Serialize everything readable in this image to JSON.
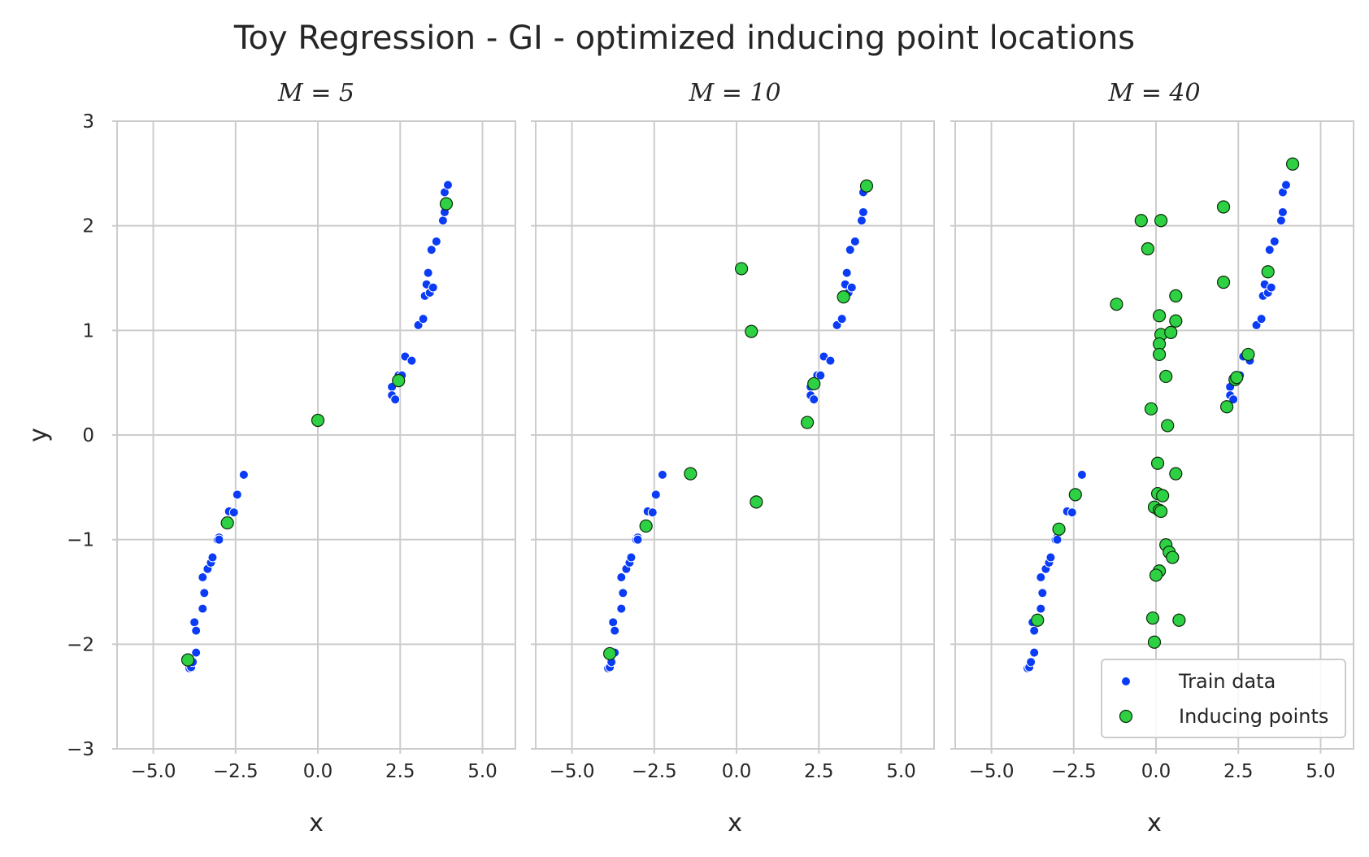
{
  "figure": {
    "suptitle": "Toy Regression - GI - optimized inducing point locations"
  },
  "colors": {
    "train": "#0b3cf5",
    "inducing": "#2ed143",
    "inducing_edge": "#0a2a0a",
    "grid": "#cccccc",
    "spine": "#cccccc"
  },
  "legend": {
    "position": "lower-right",
    "items": [
      {
        "label": "Train data",
        "kind": "train"
      },
      {
        "label": "Inducing points",
        "kind": "inducing"
      }
    ]
  },
  "chart_data": [
    {
      "type": "scatter",
      "title": "M = 5",
      "xlabel": "x",
      "ylabel": "y",
      "xlim": [
        -6.1,
        6.0
      ],
      "ylim": [
        -3,
        3
      ],
      "xticks": [
        -5.0,
        -2.5,
        0.0,
        2.5,
        5.0
      ],
      "xtick_labels": [
        "−5.0",
        "−2.5",
        "0.0",
        "2.5",
        "5.0"
      ],
      "yticks": [
        3,
        2,
        1,
        0,
        -1,
        -2,
        -3
      ],
      "ytick_labels": [
        "3",
        "2",
        "1",
        "0",
        "−1",
        "−2",
        "−3"
      ],
      "grid": true,
      "series": [
        {
          "name": "Train data",
          "points": [
            [
              -3.9,
              -2.23
            ],
            [
              -3.85,
              -2.22
            ],
            [
              -3.8,
              -2.17
            ],
            [
              -3.7,
              -2.08
            ],
            [
              -3.75,
              -1.79
            ],
            [
              -3.7,
              -1.87
            ],
            [
              -3.5,
              -1.66
            ],
            [
              -3.45,
              -1.51
            ],
            [
              -3.5,
              -1.36
            ],
            [
              -3.35,
              -1.28
            ],
            [
              -3.25,
              -1.22
            ],
            [
              -3.2,
              -1.17
            ],
            [
              -3.05,
              -1.0
            ],
            [
              -3.0,
              -0.98
            ],
            [
              -3.0,
              -1.0
            ],
            [
              -2.7,
              -0.73
            ],
            [
              -2.55,
              -0.74
            ],
            [
              -2.45,
              -0.57
            ],
            [
              -2.25,
              -0.38
            ],
            [
              2.25,
              0.46
            ],
            [
              2.25,
              0.38
            ],
            [
              2.35,
              0.34
            ],
            [
              2.45,
              0.57
            ],
            [
              2.55,
              0.57
            ],
            [
              2.65,
              0.75
            ],
            [
              2.85,
              0.71
            ],
            [
              3.05,
              1.05
            ],
            [
              3.2,
              1.11
            ],
            [
              3.25,
              1.33
            ],
            [
              3.3,
              1.44
            ],
            [
              3.4,
              1.36
            ],
            [
              3.35,
              1.55
            ],
            [
              3.5,
              1.41
            ],
            [
              3.45,
              1.77
            ],
            [
              3.6,
              1.85
            ],
            [
              3.8,
              2.05
            ],
            [
              3.85,
              2.13
            ],
            [
              3.85,
              2.32
            ],
            [
              3.95,
              2.39
            ]
          ]
        },
        {
          "name": "Inducing points",
          "points": [
            [
              -3.95,
              -2.15
            ],
            [
              -2.75,
              -0.84
            ],
            [
              0.0,
              0.14
            ],
            [
              2.45,
              0.52
            ],
            [
              3.9,
              2.21
            ]
          ]
        }
      ]
    },
    {
      "type": "scatter",
      "title": "M = 10",
      "xlabel": "x",
      "ylabel": "",
      "xlim": [
        -6.1,
        6.0
      ],
      "ylim": [
        -3,
        3
      ],
      "xticks": [
        -5.0,
        -2.5,
        0.0,
        2.5,
        5.0
      ],
      "xtick_labels": [
        "−5.0",
        "−2.5",
        "0.0",
        "2.5",
        "5.0"
      ],
      "yticks": [],
      "ytick_labels": [],
      "grid": true,
      "series": [
        {
          "name": "Train data",
          "points": [
            [
              -3.9,
              -2.23
            ],
            [
              -3.85,
              -2.22
            ],
            [
              -3.8,
              -2.17
            ],
            [
              -3.7,
              -2.08
            ],
            [
              -3.75,
              -1.79
            ],
            [
              -3.7,
              -1.87
            ],
            [
              -3.5,
              -1.66
            ],
            [
              -3.45,
              -1.51
            ],
            [
              -3.5,
              -1.36
            ],
            [
              -3.35,
              -1.28
            ],
            [
              -3.25,
              -1.22
            ],
            [
              -3.2,
              -1.17
            ],
            [
              -3.05,
              -1.0
            ],
            [
              -3.0,
              -0.98
            ],
            [
              -3.0,
              -1.0
            ],
            [
              -2.7,
              -0.73
            ],
            [
              -2.55,
              -0.74
            ],
            [
              -2.45,
              -0.57
            ],
            [
              -2.25,
              -0.38
            ],
            [
              2.25,
              0.46
            ],
            [
              2.25,
              0.38
            ],
            [
              2.35,
              0.34
            ],
            [
              2.45,
              0.57
            ],
            [
              2.55,
              0.57
            ],
            [
              2.65,
              0.75
            ],
            [
              2.85,
              0.71
            ],
            [
              3.05,
              1.05
            ],
            [
              3.2,
              1.11
            ],
            [
              3.25,
              1.33
            ],
            [
              3.3,
              1.44
            ],
            [
              3.4,
              1.36
            ],
            [
              3.35,
              1.55
            ],
            [
              3.5,
              1.41
            ],
            [
              3.45,
              1.77
            ],
            [
              3.6,
              1.85
            ],
            [
              3.8,
              2.05
            ],
            [
              3.85,
              2.13
            ],
            [
              3.85,
              2.32
            ],
            [
              3.95,
              2.39
            ]
          ]
        },
        {
          "name": "Inducing points",
          "points": [
            [
              -3.85,
              -2.09
            ],
            [
              -2.75,
              -0.87
            ],
            [
              -1.4,
              -0.37
            ],
            [
              0.15,
              1.59
            ],
            [
              0.45,
              0.99
            ],
            [
              0.6,
              -0.64
            ],
            [
              2.15,
              0.12
            ],
            [
              2.35,
              0.49
            ],
            [
              3.25,
              1.32
            ],
            [
              3.95,
              2.38
            ]
          ]
        }
      ]
    },
    {
      "type": "scatter",
      "title": "M = 40",
      "xlabel": "x",
      "ylabel": "",
      "xlim": [
        -6.1,
        6.0
      ],
      "ylim": [
        -3,
        3
      ],
      "xticks": [
        -5.0,
        -2.5,
        0.0,
        2.5,
        5.0
      ],
      "xtick_labels": [
        "−5.0",
        "−2.5",
        "0.0",
        "2.5",
        "5.0"
      ],
      "yticks": [],
      "ytick_labels": [],
      "grid": true,
      "legend": true,
      "series": [
        {
          "name": "Train data",
          "points": [
            [
              -3.9,
              -2.23
            ],
            [
              -3.85,
              -2.22
            ],
            [
              -3.8,
              -2.17
            ],
            [
              -3.7,
              -2.08
            ],
            [
              -3.75,
              -1.79
            ],
            [
              -3.7,
              -1.87
            ],
            [
              -3.5,
              -1.66
            ],
            [
              -3.45,
              -1.51
            ],
            [
              -3.5,
              -1.36
            ],
            [
              -3.35,
              -1.28
            ],
            [
              -3.25,
              -1.22
            ],
            [
              -3.2,
              -1.17
            ],
            [
              -3.05,
              -1.0
            ],
            [
              -3.0,
              -0.98
            ],
            [
              -3.0,
              -1.0
            ],
            [
              -2.7,
              -0.73
            ],
            [
              -2.55,
              -0.74
            ],
            [
              -2.45,
              -0.57
            ],
            [
              -2.25,
              -0.38
            ],
            [
              2.25,
              0.46
            ],
            [
              2.25,
              0.38
            ],
            [
              2.35,
              0.34
            ],
            [
              2.45,
              0.57
            ],
            [
              2.55,
              0.57
            ],
            [
              2.65,
              0.75
            ],
            [
              2.85,
              0.71
            ],
            [
              3.05,
              1.05
            ],
            [
              3.2,
              1.11
            ],
            [
              3.25,
              1.33
            ],
            [
              3.3,
              1.44
            ],
            [
              3.4,
              1.36
            ],
            [
              3.35,
              1.55
            ],
            [
              3.5,
              1.41
            ],
            [
              3.45,
              1.77
            ],
            [
              3.6,
              1.85
            ],
            [
              3.8,
              2.05
            ],
            [
              3.85,
              2.13
            ],
            [
              3.85,
              2.32
            ],
            [
              3.95,
              2.39
            ]
          ]
        },
        {
          "name": "Inducing points",
          "points": [
            [
              -3.6,
              -1.77
            ],
            [
              -2.95,
              -0.9
            ],
            [
              -2.45,
              -0.57
            ],
            [
              -1.2,
              1.25
            ],
            [
              -0.45,
              2.05
            ],
            [
              -0.25,
              1.78
            ],
            [
              0.15,
              2.05
            ],
            [
              -0.15,
              0.25
            ],
            [
              0.1,
              1.14
            ],
            [
              0.15,
              0.96
            ],
            [
              0.1,
              0.87
            ],
            [
              0.1,
              0.77
            ],
            [
              0.3,
              0.56
            ],
            [
              0.35,
              0.09
            ],
            [
              0.45,
              0.98
            ],
            [
              0.6,
              1.09
            ],
            [
              0.6,
              1.33
            ],
            [
              0.6,
              -0.37
            ],
            [
              0.05,
              -0.27
            ],
            [
              0.05,
              -0.56
            ],
            [
              0.2,
              -0.58
            ],
            [
              -0.05,
              -0.69
            ],
            [
              0.1,
              -0.72
            ],
            [
              0.15,
              -0.73
            ],
            [
              0.3,
              -1.05
            ],
            [
              0.4,
              -1.12
            ],
            [
              0.5,
              -1.17
            ],
            [
              0.1,
              -1.3
            ],
            [
              0.0,
              -1.34
            ],
            [
              -0.1,
              -1.75
            ],
            [
              -0.05,
              -1.98
            ],
            [
              0.7,
              -1.77
            ],
            [
              2.05,
              2.18
            ],
            [
              2.05,
              1.46
            ],
            [
              2.15,
              0.27
            ],
            [
              2.4,
              0.53
            ],
            [
              2.45,
              0.55
            ],
            [
              2.8,
              0.77
            ],
            [
              3.4,
              1.56
            ],
            [
              4.15,
              2.59
            ]
          ]
        }
      ]
    }
  ]
}
